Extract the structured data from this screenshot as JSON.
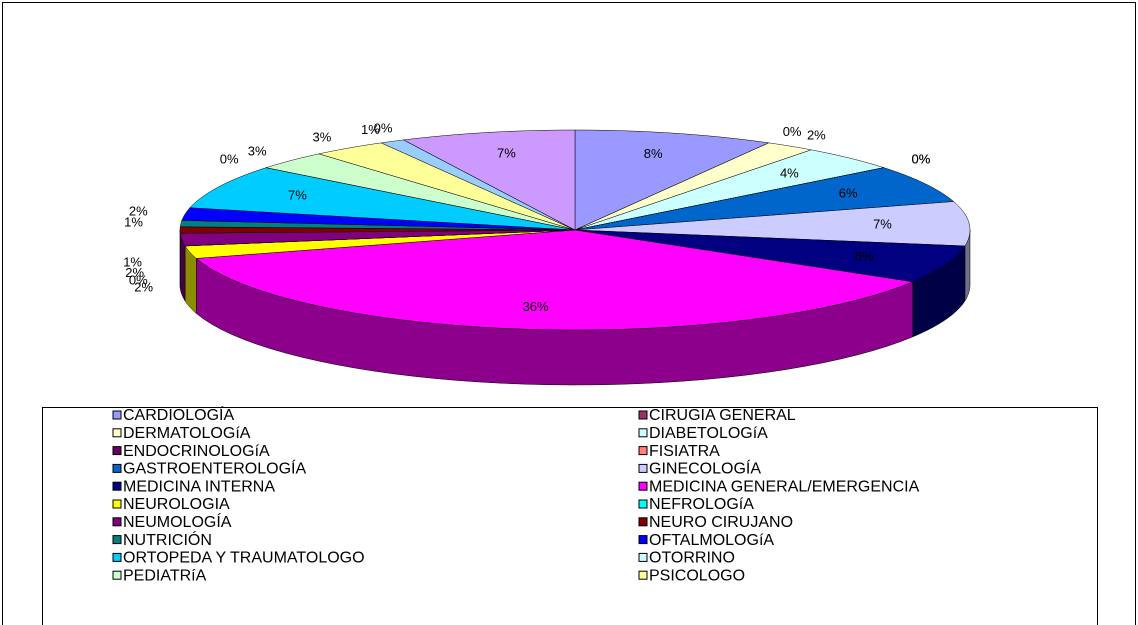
{
  "chart_data": {
    "type": "pie3d",
    "categories": [
      "CARDIOLOGÍA",
      "CIRUGIA GENERAL",
      "DERMATOLOGíA",
      "DIABETOLOGíA",
      "ENDOCRINOLOGíA",
      "FISIATRA",
      "GASTROENTEROLOGÍA",
      "GINECOLOGÍA",
      "MEDICINA INTERNA",
      "MEDICINA GENERAL/EMERGENCIA",
      "NEUROLOGIA",
      "NEFROLOGíA",
      "NEUMOLOGÍA",
      "NEURO CIRUJANO",
      "NUTRICIÓN",
      "OFTALMOLOGíA",
      "ORTOPEDA Y TRAUMATOLOGO",
      "OTORRINO",
      "PEDIATRíA",
      "PSICOLOGO",
      null,
      null,
      null
    ],
    "values": [
      8,
      0,
      2,
      4,
      0,
      0,
      6,
      7,
      6,
      36,
      2,
      0,
      2,
      1,
      1,
      2,
      7,
      0,
      3,
      3,
      1,
      0,
      7
    ],
    "value_labels": [
      "8%",
      "0%",
      "2%",
      "4%",
      "0%",
      "0%",
      "6%",
      "7%",
      "6%",
      "36%",
      "2%",
      "0%",
      "2%",
      "1%",
      "1%",
      "2%",
      "7%",
      "0%",
      "3%",
      "3%",
      "1%",
      "0%",
      "7%"
    ],
    "colors": [
      "#9999ff",
      "#993366",
      "#ffffcc",
      "#ccffff",
      "#660066",
      "#ff8080",
      "#0066cc",
      "#ccccff",
      "#000080",
      "#ff00ff",
      "#ffff00",
      "#00ffff",
      "#800080",
      "#800000",
      "#008080",
      "#0000ff",
      "#00ccff",
      "#ccffff",
      "#ccffcc",
      "#ffff99",
      "#99ccff",
      "#ff99cc",
      "#cc99ff"
    ],
    "legend": "bottom"
  }
}
